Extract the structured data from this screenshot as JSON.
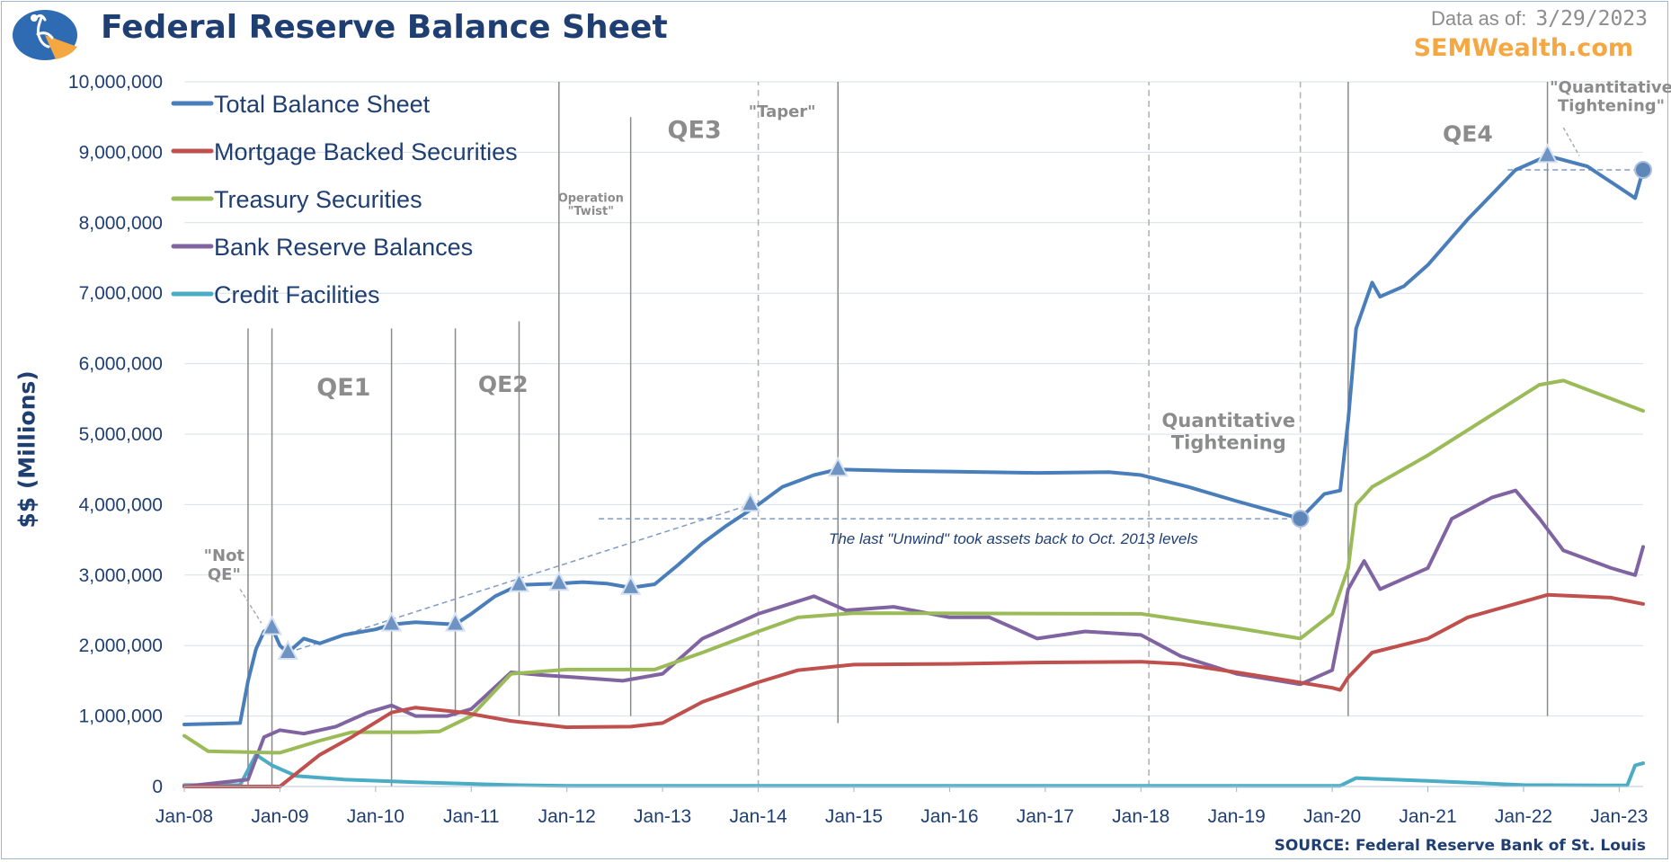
{
  "header": {
    "title": "Federal Reserve Balance Sheet",
    "as_of_label": "Data as of:",
    "as_of_date": "3/29/2023",
    "brand": "SEMWealth.com",
    "source": "SOURCE:  Federal Reserve Bank of St. Louis",
    "logo_icon": "semwealth-logo-icon"
  },
  "colors": {
    "title": "#1f3f73",
    "brand": "#f5a742",
    "annotation_gray": "#8c8c8c",
    "qe4": "#1f6fb8",
    "grid": "#d4e0ee"
  },
  "chart_data": {
    "type": "line",
    "title": "Federal Reserve Balance Sheet",
    "ylabel": "$$ (Millions)",
    "xlabel": "",
    "ylim": [
      0,
      10000000
    ],
    "xlim": [
      "2008-01",
      "2023-04"
    ],
    "grid": true,
    "legend_position": "top-left",
    "y_ticks": [
      "0",
      "1,000,000",
      "2,000,000",
      "3,000,000",
      "4,000,000",
      "5,000,000",
      "6,000,000",
      "7,000,000",
      "8,000,000",
      "9,000,000",
      "10,000,000"
    ],
    "x_ticks": [
      {
        "label": "Jan-08",
        "date": "2008-01"
      },
      {
        "label": "Jan-09",
        "date": "2009-01"
      },
      {
        "label": "Jan-10",
        "date": "2010-01"
      },
      {
        "label": "Jan-11",
        "date": "2011-01"
      },
      {
        "label": "Jan-12",
        "date": "2012-01"
      },
      {
        "label": "Jan-13",
        "date": "2013-01"
      },
      {
        "label": "Jan-14",
        "date": "2014-01"
      },
      {
        "label": "Jan-15",
        "date": "2015-01"
      },
      {
        "label": "Jan-16",
        "date": "2016-01"
      },
      {
        "label": "Jan-17",
        "date": "2017-01"
      },
      {
        "label": "Jan-18",
        "date": "2018-01"
      },
      {
        "label": "Jan-19",
        "date": "2019-01"
      },
      {
        "label": "Jan-20",
        "date": "2020-01"
      },
      {
        "label": "Jan-21",
        "date": "2021-01"
      },
      {
        "label": "Jan-22",
        "date": "2022-01"
      },
      {
        "label": "Jan-23",
        "date": "2023-01"
      }
    ],
    "series": [
      {
        "name": "Total Balance Sheet",
        "color": "#4a7ebb",
        "points": [
          [
            "2008-01",
            880000
          ],
          [
            "2008-08",
            900000
          ],
          [
            "2008-09",
            1500000
          ],
          [
            "2008-10",
            1950000
          ],
          [
            "2008-11",
            2200000
          ],
          [
            "2008-12",
            2250000
          ],
          [
            "2009-01",
            2000000
          ],
          [
            "2009-02",
            1900000
          ],
          [
            "2009-04",
            2100000
          ],
          [
            "2009-06",
            2030000
          ],
          [
            "2009-09",
            2150000
          ],
          [
            "2010-01",
            2230000
          ],
          [
            "2010-03",
            2300000
          ],
          [
            "2010-06",
            2330000
          ],
          [
            "2010-11",
            2300000
          ],
          [
            "2011-01",
            2450000
          ],
          [
            "2011-04",
            2700000
          ],
          [
            "2011-07",
            2860000
          ],
          [
            "2011-12",
            2880000
          ],
          [
            "2012-03",
            2900000
          ],
          [
            "2012-06",
            2880000
          ],
          [
            "2012-09",
            2820000
          ],
          [
            "2012-12",
            2870000
          ],
          [
            "2013-03",
            3150000
          ],
          [
            "2013-06",
            3450000
          ],
          [
            "2013-09",
            3700000
          ],
          [
            "2014-01",
            4000000
          ],
          [
            "2014-04",
            4250000
          ],
          [
            "2014-08",
            4420000
          ],
          [
            "2014-11",
            4500000
          ],
          [
            "2015-06",
            4480000
          ],
          [
            "2016-01",
            4470000
          ],
          [
            "2016-12",
            4450000
          ],
          [
            "2017-09",
            4460000
          ],
          [
            "2018-01",
            4420000
          ],
          [
            "2018-07",
            4250000
          ],
          [
            "2019-01",
            4050000
          ],
          [
            "2019-09",
            3800000
          ],
          [
            "2019-12",
            4150000
          ],
          [
            "2020-02",
            4200000
          ],
          [
            "2020-03",
            5200000
          ],
          [
            "2020-04",
            6500000
          ],
          [
            "2020-06",
            7150000
          ],
          [
            "2020-07",
            6950000
          ],
          [
            "2020-10",
            7100000
          ],
          [
            "2021-01",
            7400000
          ],
          [
            "2021-06",
            8050000
          ],
          [
            "2021-12",
            8750000
          ],
          [
            "2022-04",
            8950000
          ],
          [
            "2022-09",
            8800000
          ],
          [
            "2023-01",
            8500000
          ],
          [
            "2023-03",
            8350000
          ],
          [
            "2023-04",
            8750000
          ]
        ]
      },
      {
        "name": "Mortgage Backed Securities",
        "color": "#c0504d",
        "points": [
          [
            "2008-01",
            0
          ],
          [
            "2009-01",
            0
          ],
          [
            "2009-06",
            450000
          ],
          [
            "2009-10",
            700000
          ],
          [
            "2010-03",
            1050000
          ],
          [
            "2010-06",
            1120000
          ],
          [
            "2010-12",
            1050000
          ],
          [
            "2011-06",
            930000
          ],
          [
            "2012-01",
            840000
          ],
          [
            "2012-09",
            850000
          ],
          [
            "2013-01",
            900000
          ],
          [
            "2013-06",
            1200000
          ],
          [
            "2014-01",
            1480000
          ],
          [
            "2014-06",
            1650000
          ],
          [
            "2015-01",
            1730000
          ],
          [
            "2016-01",
            1740000
          ],
          [
            "2017-01",
            1760000
          ],
          [
            "2018-01",
            1770000
          ],
          [
            "2018-06",
            1740000
          ],
          [
            "2019-01",
            1620000
          ],
          [
            "2019-06",
            1530000
          ],
          [
            "2020-01",
            1400000
          ],
          [
            "2020-02",
            1370000
          ],
          [
            "2020-03",
            1550000
          ],
          [
            "2020-06",
            1900000
          ],
          [
            "2021-01",
            2100000
          ],
          [
            "2021-06",
            2400000
          ],
          [
            "2022-04",
            2720000
          ],
          [
            "2022-12",
            2680000
          ],
          [
            "2023-04",
            2590000
          ]
        ]
      },
      {
        "name": "Treasury Securities",
        "color": "#9bbb59",
        "points": [
          [
            "2008-01",
            720000
          ],
          [
            "2008-04",
            500000
          ],
          [
            "2008-12",
            480000
          ],
          [
            "2009-01",
            480000
          ],
          [
            "2009-06",
            650000
          ],
          [
            "2009-10",
            770000
          ],
          [
            "2010-06",
            770000
          ],
          [
            "2010-09",
            780000
          ],
          [
            "2011-01",
            1000000
          ],
          [
            "2011-06",
            1600000
          ],
          [
            "2012-01",
            1660000
          ],
          [
            "2012-12",
            1660000
          ],
          [
            "2013-06",
            1900000
          ],
          [
            "2014-01",
            2200000
          ],
          [
            "2014-06",
            2400000
          ],
          [
            "2015-01",
            2460000
          ],
          [
            "2018-01",
            2450000
          ],
          [
            "2019-01",
            2250000
          ],
          [
            "2019-09",
            2100000
          ],
          [
            "2020-01",
            2450000
          ],
          [
            "2020-03",
            3100000
          ],
          [
            "2020-04",
            4000000
          ],
          [
            "2020-06",
            4250000
          ],
          [
            "2021-01",
            4700000
          ],
          [
            "2022-03",
            5700000
          ],
          [
            "2022-06",
            5760000
          ],
          [
            "2023-04",
            5330000
          ]
        ]
      },
      {
        "name": "Bank Reserve Balances",
        "color": "#8064a2",
        "points": [
          [
            "2008-01",
            0
          ],
          [
            "2008-09",
            100000
          ],
          [
            "2008-11",
            700000
          ],
          [
            "2009-01",
            800000
          ],
          [
            "2009-04",
            750000
          ],
          [
            "2009-08",
            850000
          ],
          [
            "2009-12",
            1050000
          ],
          [
            "2010-03",
            1150000
          ],
          [
            "2010-06",
            1000000
          ],
          [
            "2010-10",
            1000000
          ],
          [
            "2011-01",
            1100000
          ],
          [
            "2011-06",
            1620000
          ],
          [
            "2011-10",
            1580000
          ],
          [
            "2012-02",
            1550000
          ],
          [
            "2012-08",
            1500000
          ],
          [
            "2013-01",
            1600000
          ],
          [
            "2013-06",
            2100000
          ],
          [
            "2014-01",
            2450000
          ],
          [
            "2014-08",
            2700000
          ],
          [
            "2014-12",
            2500000
          ],
          [
            "2015-06",
            2550000
          ],
          [
            "2016-01",
            2400000
          ],
          [
            "2016-06",
            2400000
          ],
          [
            "2016-12",
            2100000
          ],
          [
            "2017-06",
            2200000
          ],
          [
            "2018-01",
            2150000
          ],
          [
            "2018-06",
            1850000
          ],
          [
            "2019-01",
            1600000
          ],
          [
            "2019-09",
            1450000
          ],
          [
            "2020-01",
            1650000
          ],
          [
            "2020-03",
            2800000
          ],
          [
            "2020-05",
            3200000
          ],
          [
            "2020-07",
            2800000
          ],
          [
            "2021-01",
            3100000
          ],
          [
            "2021-04",
            3800000
          ],
          [
            "2021-09",
            4100000
          ],
          [
            "2021-12",
            4200000
          ],
          [
            "2022-03",
            3800000
          ],
          [
            "2022-06",
            3350000
          ],
          [
            "2022-12",
            3100000
          ],
          [
            "2023-03",
            3000000
          ],
          [
            "2023-04",
            3400000
          ]
        ]
      },
      {
        "name": "Credit Facilities",
        "color": "#4bacc6",
        "points": [
          [
            "2008-01",
            20000
          ],
          [
            "2008-08",
            20000
          ],
          [
            "2008-10",
            450000
          ],
          [
            "2008-12",
            300000
          ],
          [
            "2009-03",
            150000
          ],
          [
            "2009-09",
            100000
          ],
          [
            "2010-06",
            60000
          ],
          [
            "2011-06",
            20000
          ],
          [
            "2012-01",
            10000
          ],
          [
            "2020-02",
            10000
          ],
          [
            "2020-04",
            120000
          ],
          [
            "2021-01",
            80000
          ],
          [
            "2022-01",
            20000
          ],
          [
            "2023-02",
            15000
          ],
          [
            "2023-03",
            300000
          ],
          [
            "2023-04",
            330000
          ]
        ]
      }
    ],
    "markers": [
      {
        "series": "Total Balance Sheet",
        "date": "2008-12",
        "value": 2250000,
        "shape": "triangle"
      },
      {
        "series": "Total Balance Sheet",
        "date": "2009-02",
        "value": 1900000,
        "shape": "triangle"
      },
      {
        "series": "Total Balance Sheet",
        "date": "2010-03",
        "value": 2300000,
        "shape": "triangle"
      },
      {
        "series": "Total Balance Sheet",
        "date": "2010-11",
        "value": 2300000,
        "shape": "triangle"
      },
      {
        "series": "Total Balance Sheet",
        "date": "2011-07",
        "value": 2860000,
        "shape": "triangle"
      },
      {
        "series": "Total Balance Sheet",
        "date": "2011-12",
        "value": 2880000,
        "shape": "triangle"
      },
      {
        "series": "Total Balance Sheet",
        "date": "2012-09",
        "value": 2820000,
        "shape": "triangle"
      },
      {
        "series": "Total Balance Sheet",
        "date": "2013-12",
        "value": 4000000,
        "shape": "triangle"
      },
      {
        "series": "Total Balance Sheet",
        "date": "2014-11",
        "value": 4500000,
        "shape": "triangle"
      },
      {
        "series": "Total Balance Sheet",
        "date": "2019-09",
        "value": 3800000,
        "shape": "circle"
      },
      {
        "series": "Total Balance Sheet",
        "date": "2022-04",
        "value": 8950000,
        "shape": "triangle"
      },
      {
        "series": "Total Balance Sheet",
        "date": "2023-04",
        "value": 8750000,
        "shape": "circle"
      }
    ],
    "event_lines": [
      {
        "date": "2008-09",
        "style": "solid",
        "from": 0,
        "to": 6500000
      },
      {
        "date": "2008-12",
        "style": "solid",
        "from": 0,
        "to": 6500000
      },
      {
        "date": "2010-03",
        "style": "solid",
        "from": 0,
        "to": 6500000
      },
      {
        "date": "2010-11",
        "style": "solid",
        "from": 1000000,
        "to": 6500000
      },
      {
        "date": "2011-07",
        "style": "solid",
        "from": 1000000,
        "to": 6600000
      },
      {
        "date": "2011-12",
        "style": "solid",
        "from": 1000000,
        "to": 10000000
      },
      {
        "date": "2012-09",
        "style": "solid",
        "from": 1000000,
        "to": 9500000
      },
      {
        "date": "2014-01",
        "style": "dashed",
        "from": 0,
        "to": 10000000
      },
      {
        "date": "2014-11",
        "style": "solid",
        "from": 900000,
        "to": 10000000
      },
      {
        "date": "2018-02",
        "style": "dashed",
        "from": 0,
        "to": 10000000
      },
      {
        "date": "2019-09",
        "style": "dashed",
        "from": 1500000,
        "to": 10000000
      },
      {
        "date": "2020-03",
        "style": "solid",
        "from": 1000000,
        "to": 10000000
      },
      {
        "date": "2022-04",
        "style": "solid",
        "from": 1000000,
        "to": 10000000
      }
    ],
    "reference_lines": [
      {
        "label": "trend-line",
        "from": [
          "2009-02",
          1900000
        ],
        "to": [
          "2013-12",
          4000000
        ],
        "style": "dashed"
      },
      {
        "label": "oct-2013-level",
        "from": [
          "2012-05",
          3800000
        ],
        "to": [
          "2019-09",
          3800000
        ],
        "style": "dashed"
      },
      {
        "label": "qt-level",
        "from": [
          "2021-11",
          8750000
        ],
        "to": [
          "2023-04",
          8750000
        ],
        "style": "dashed"
      }
    ],
    "annotations": [
      {
        "id": "not-qe",
        "lines": [
          "\"Not",
          "QE\""
        ],
        "date": "2008-06",
        "value": 3200000,
        "size": 18
      },
      {
        "id": "qe1",
        "lines": [
          "QE1"
        ],
        "date": "2009-09",
        "value": 5550000,
        "size": 27
      },
      {
        "id": "qe2",
        "lines": [
          "QE2"
        ],
        "date": "2011-05",
        "value": 5600000,
        "size": 25
      },
      {
        "id": "operation-twist",
        "lines": [
          "Operation",
          "\"Twist\""
        ],
        "date": "2012-04",
        "value": 8300000,
        "size": 13
      },
      {
        "id": "qe3",
        "lines": [
          "QE3"
        ],
        "date": "2013-05",
        "value": 9200000,
        "size": 27
      },
      {
        "id": "taper",
        "lines": [
          "\"Taper\""
        ],
        "date": "2014-04",
        "value": 9500000,
        "size": 18
      },
      {
        "id": "quantitative-tightening",
        "lines": [
          "Quantitative",
          "Tightening"
        ],
        "date": "2018-12",
        "value": 5100000,
        "size": 21
      },
      {
        "id": "qe4",
        "lines": [
          "QE4"
        ],
        "date": "2021-06",
        "value": 9150000,
        "size": 25
      },
      {
        "id": "quantitative-tightening-2022",
        "lines": [
          "\"Quantitative",
          "Tightening\""
        ],
        "date": "2022-12",
        "value": 9850000,
        "size": 18
      }
    ],
    "note": "The last \"Unwind\" took assets back to Oct. 2013 levels"
  }
}
